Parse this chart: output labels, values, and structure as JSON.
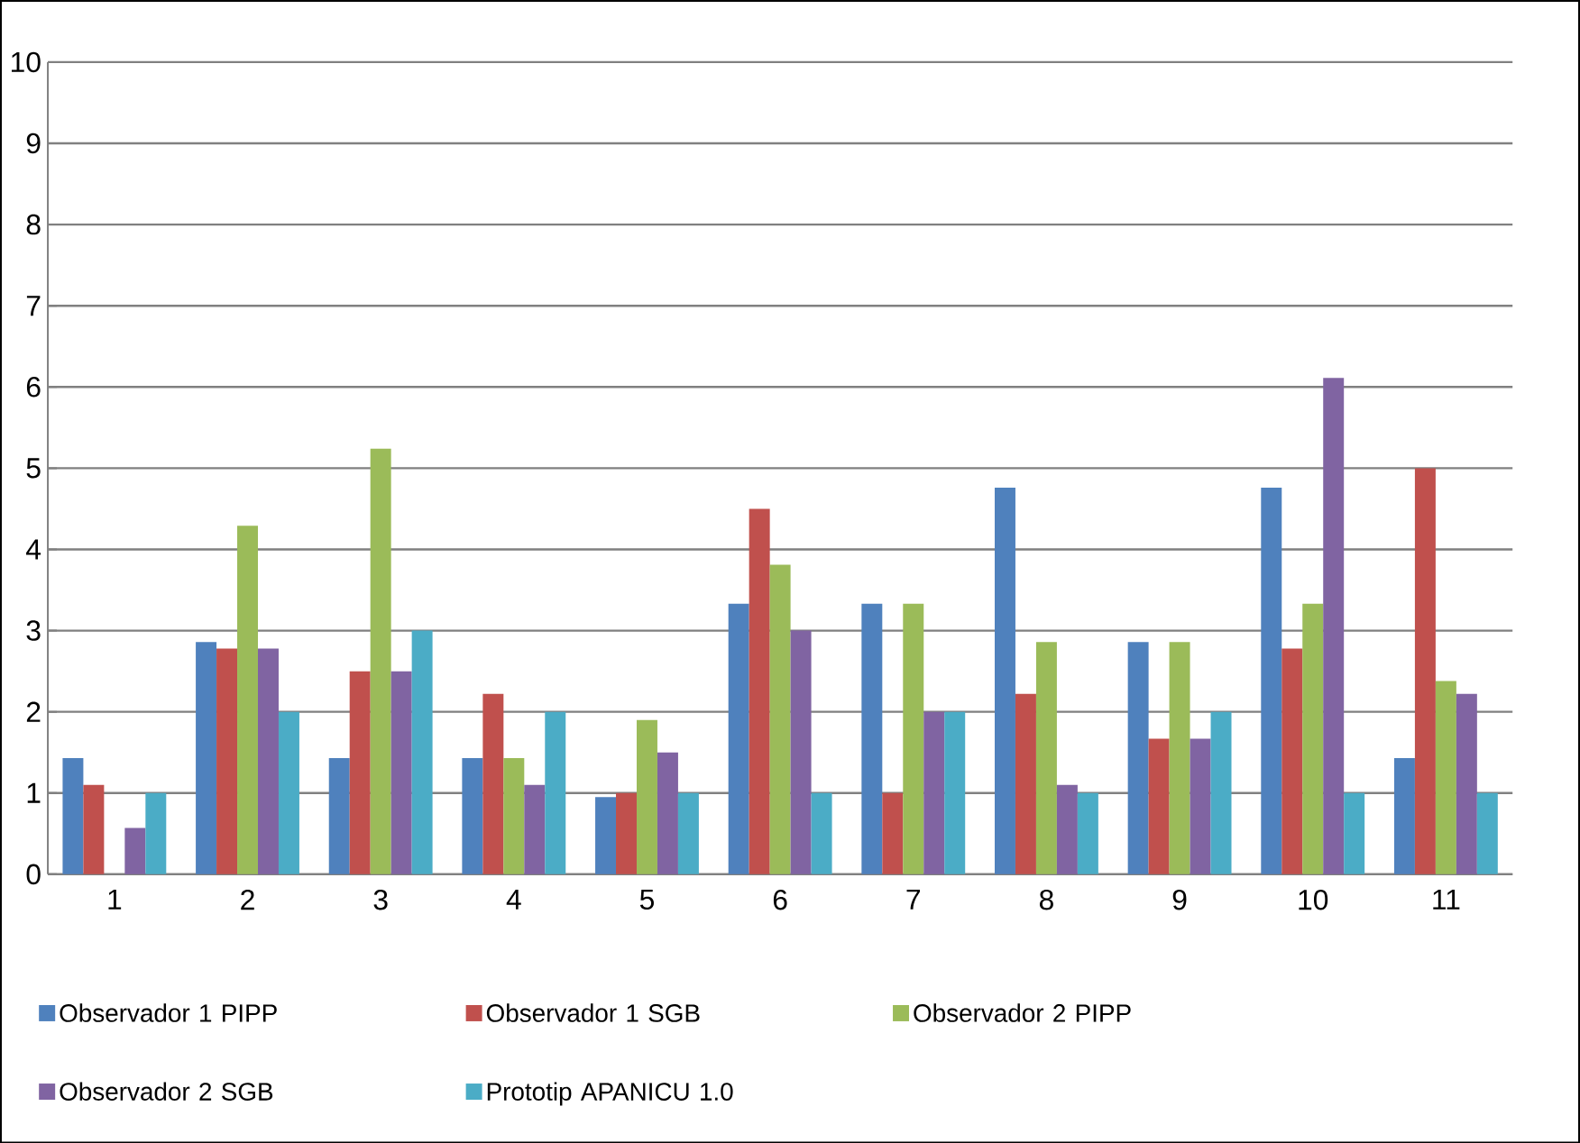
{
  "chart_data": {
    "type": "bar",
    "categories": [
      "1",
      "2",
      "3",
      "4",
      "5",
      "6",
      "7",
      "8",
      "9",
      "10",
      "11"
    ],
    "series": [
      {
        "name": "Observador 1 PIPP",
        "color": "#4f81bd",
        "values": [
          1.43,
          2.86,
          1.43,
          1.43,
          0.95,
          3.33,
          3.33,
          4.76,
          2.86,
          4.76,
          1.43
        ]
      },
      {
        "name": "Observador 1 SGB",
        "color": "#c0504d",
        "values": [
          1.1,
          2.78,
          2.5,
          2.22,
          1,
          4.5,
          1,
          2.22,
          1.67,
          2.78,
          5
        ]
      },
      {
        "name": "Observador 2 PIPP",
        "color": "#9bbb59",
        "values": [
          0,
          4.29,
          5.24,
          1.43,
          1.9,
          3.81,
          3.33,
          2.86,
          2.86,
          3.33,
          2.38
        ]
      },
      {
        "name": "Observador 2 SGB",
        "color": "#8064a2",
        "values": [
          0.57,
          2.78,
          2.5,
          1.1,
          1.5,
          3,
          2,
          1.1,
          1.67,
          6.11,
          2.22
        ]
      },
      {
        "name": "Prototip APANICU 1.0",
        "color": "#4bacc6",
        "values": [
          1,
          2,
          3,
          2,
          1,
          1,
          2,
          1,
          2,
          1,
          1
        ]
      }
    ],
    "ylim": [
      0,
      10
    ],
    "yticks": [
      0,
      1,
      2,
      3,
      4,
      5,
      6,
      7,
      8,
      9,
      10
    ],
    "grid": "y",
    "legend": "bottom"
  }
}
